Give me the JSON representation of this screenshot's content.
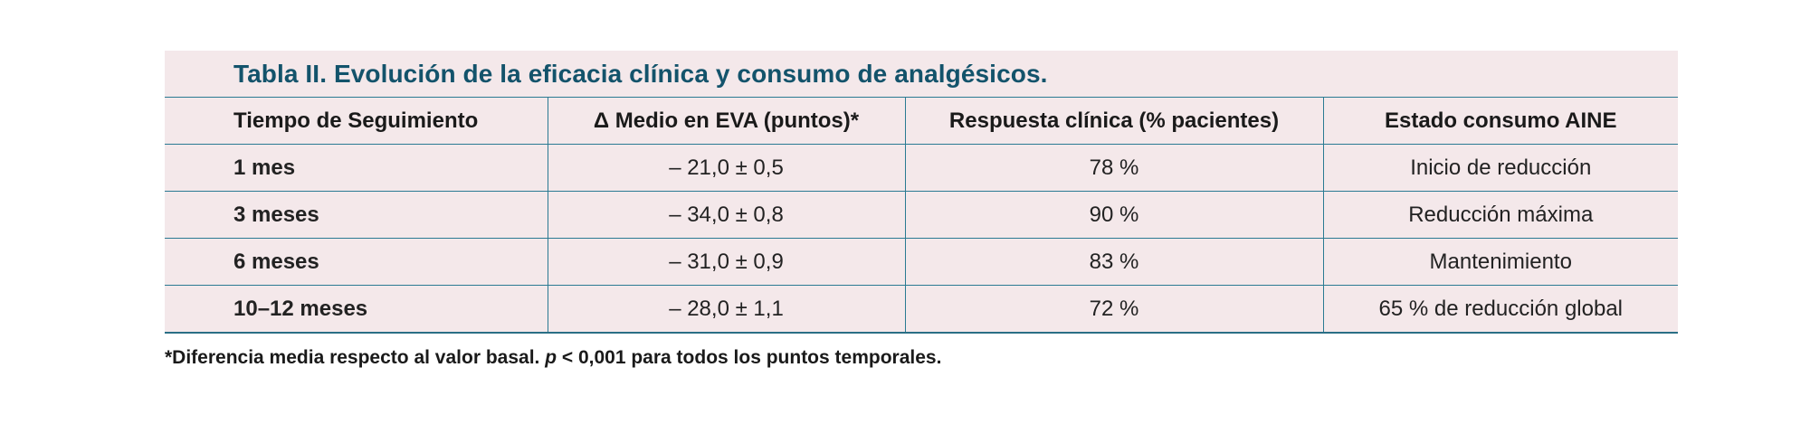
{
  "table": {
    "caption": "Tabla II. Evolución de la eficacia clínica y consumo de analgésicos.",
    "headers": [
      "Tiempo de Seguimiento",
      "Δ Medio en EVA (puntos)*",
      "Respuesta clínica (% pacientes)",
      "Estado consumo AINE"
    ],
    "rows": [
      [
        "1 mes",
        "– 21,0 ± 0,5",
        "78 %",
        "Inicio de reducción"
      ],
      [
        "3 meses",
        "– 34,0 ± 0,8",
        "90 %",
        "Reducción máxima"
      ],
      [
        "6 meses",
        "– 31,0 ± 0,9",
        "83 %",
        "Mantenimiento"
      ],
      [
        "10–12 meses",
        "– 28,0 ± 1,1",
        "72 %",
        "65 % de reducción global"
      ]
    ]
  },
  "footnote": {
    "prefix": "*Diferencia media respecto al valor basal. ",
    "p_symbol": "p",
    "suffix": " < 0,001 para todos los puntos temporales."
  }
}
